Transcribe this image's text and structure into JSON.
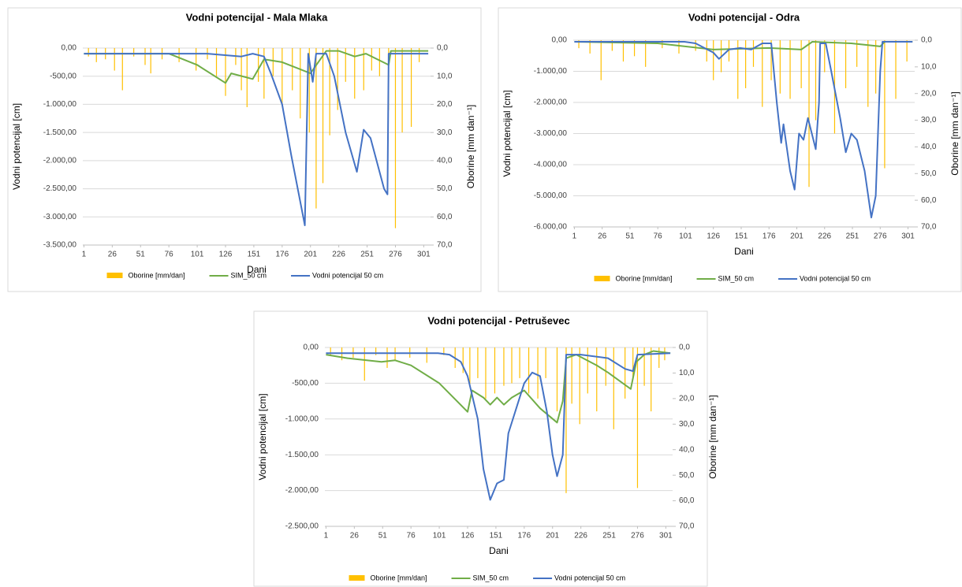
{
  "chart_data": [
    {
      "type": "bar-line",
      "title": "Vodni potencijal - Mala Mlaka",
      "x_label": "Dani",
      "y_label": "Vodni potencijal [cm]",
      "y2_label": "Oborine [mm dan⁻¹]",
      "xlim": [
        0,
        307
      ],
      "xticks": [
        1,
        26,
        51,
        76,
        101,
        126,
        151,
        176,
        201,
        226,
        251,
        276,
        301
      ],
      "ylim": [
        -3500,
        0
      ],
      "yticks": [
        {
          "value": 0,
          "label": "0,00"
        },
        {
          "value": -500,
          "label": "-500,00"
        },
        {
          "value": -1000,
          "label": "-1.000,00"
        },
        {
          "value": -1500,
          "label": "-1.500,00"
        },
        {
          "value": -2000,
          "label": "-2.000,00"
        },
        {
          "value": -2500,
          "label": "-2.500,00"
        },
        {
          "value": -3000,
          "label": "-3.000,00"
        },
        {
          "value": -3500,
          "label": "-3.500,00"
        }
      ],
      "y2lim": [
        0,
        70
      ],
      "y2_inverted": true,
      "y2ticks": [
        {
          "value": 0,
          "label": "0,0"
        },
        {
          "value": 10,
          "label": "10,0"
        },
        {
          "value": 20,
          "label": "20,0"
        },
        {
          "value": 30,
          "label": "30,0"
        },
        {
          "value": 40,
          "label": "40,0"
        },
        {
          "value": 50,
          "label": "50,0"
        },
        {
          "value": 60,
          "label": "60,0"
        },
        {
          "value": 70,
          "label": "70,0"
        }
      ],
      "grid": true,
      "legend": "bottom",
      "series": [
        {
          "name": "Oborine [mm/dan]",
          "type": "bar",
          "axis": "y2",
          "color": "#ffc000",
          "x": [
            5,
            12,
            20,
            28,
            35,
            45,
            55,
            60,
            70,
            85,
            100,
            110,
            118,
            126,
            135,
            140,
            145,
            155,
            160,
            168,
            176,
            185,
            192,
            200,
            206,
            212,
            218,
            225,
            232,
            240,
            248,
            255,
            262,
            270,
            276,
            282,
            290,
            297
          ],
          "values": [
            3,
            5,
            4,
            8,
            15,
            3,
            6,
            9,
            4,
            5,
            8,
            4,
            10,
            17,
            6,
            15,
            21,
            12,
            18,
            10,
            20,
            15,
            25,
            30,
            57,
            48,
            31,
            22,
            12,
            18,
            15,
            8,
            10,
            22,
            64,
            30,
            28,
            5
          ]
        },
        {
          "name": "SIM_50 cm",
          "type": "line",
          "color": "#70ad47",
          "x": [
            1,
            51,
            76,
            101,
            126,
            131,
            150,
            160,
            176,
            201,
            215,
            226,
            240,
            250,
            270,
            272,
            305
          ],
          "values": [
            -100,
            -100,
            -100,
            -300,
            -620,
            -450,
            -550,
            -200,
            -250,
            -450,
            -50,
            -50,
            -150,
            -100,
            -300,
            -50,
            -50
          ]
        },
        {
          "name": "Vodni potencijal 50 cm",
          "type": "line",
          "color": "#4472c4",
          "x": [
            1,
            60,
            110,
            140,
            150,
            160,
            166,
            176,
            184,
            196,
            199,
            203,
            206,
            215,
            222,
            232,
            242,
            248,
            254,
            266,
            269,
            270,
            305
          ],
          "values": [
            -100,
            -100,
            -100,
            -150,
            -100,
            -150,
            -450,
            -1000,
            -1900,
            -3150,
            -100,
            -600,
            -100,
            -100,
            -500,
            -1500,
            -2200,
            -1450,
            -1600,
            -2500,
            -2600,
            -100,
            -100
          ]
        }
      ]
    },
    {
      "type": "bar-line",
      "title": "Vodni potencijal - Odra",
      "x_label": "Dani",
      "y_label": "Vodni potencijal [cm]",
      "y2_label": "Oborine [mm dan⁻¹]",
      "xlim": [
        0,
        307
      ],
      "xticks": [
        1,
        26,
        51,
        76,
        101,
        126,
        151,
        176,
        201,
        226,
        251,
        276,
        301
      ],
      "ylim": [
        -6000,
        0
      ],
      "yticks": [
        {
          "value": 0,
          "label": "0,00"
        },
        {
          "value": -1000,
          "label": "-1.000,00"
        },
        {
          "value": -2000,
          "label": "-2.000,00"
        },
        {
          "value": -3000,
          "label": "-3.000,00"
        },
        {
          "value": -4000,
          "label": "-4.000,00"
        },
        {
          "value": -5000,
          "label": "-5.000,00"
        },
        {
          "value": -6000,
          "label": "-6.000,00"
        }
      ],
      "y2lim": [
        0,
        70
      ],
      "y2_inverted": true,
      "y2ticks": [
        {
          "value": 0,
          "label": "0,0"
        },
        {
          "value": 10,
          "label": "10,0"
        },
        {
          "value": 20,
          "label": "20,0"
        },
        {
          "value": 30,
          "label": "30,0"
        },
        {
          "value": 40,
          "label": "40,0"
        },
        {
          "value": 50,
          "label": "50,0"
        },
        {
          "value": 60,
          "label": "60,0"
        },
        {
          "value": 70,
          "label": "70,0"
        }
      ],
      "grid": true,
      "legend": "bottom",
      "series": [
        {
          "name": "Oborine [mm/dan]",
          "type": "bar",
          "axis": "y2",
          "color": "#ffc000",
          "x": [
            5,
            15,
            25,
            35,
            45,
            55,
            65,
            80,
            95,
            110,
            120,
            126,
            133,
            140,
            148,
            155,
            162,
            170,
            178,
            186,
            195,
            205,
            212,
            218,
            226,
            235,
            245,
            255,
            265,
            272,
            280,
            290,
            300
          ],
          "values": [
            3,
            5,
            15,
            4,
            8,
            6,
            10,
            3,
            5,
            4,
            8,
            15,
            12,
            8,
            22,
            18,
            10,
            25,
            15,
            20,
            22,
            18,
            55,
            30,
            12,
            35,
            18,
            10,
            25,
            20,
            48,
            22,
            8
          ]
        },
        {
          "name": "SIM_50 cm",
          "type": "line",
          "color": "#70ad47",
          "x": [
            1,
            76,
            126,
            176,
            205,
            215,
            250,
            276,
            280,
            305
          ],
          "values": [
            -50,
            -100,
            -300,
            -250,
            -300,
            -50,
            -100,
            -200,
            -50,
            -50
          ]
        },
        {
          "name": "Vodni potencijal 50 cm",
          "type": "line",
          "color": "#4472c4",
          "x": [
            1,
            100,
            110,
            126,
            131,
            140,
            150,
            160,
            170,
            178,
            183,
            187,
            189,
            195,
            199,
            203,
            207,
            211,
            218,
            221,
            222,
            227,
            232,
            240,
            245,
            250,
            255,
            262,
            268,
            272,
            276,
            278,
            305
          ],
          "values": [
            -50,
            -50,
            -100,
            -400,
            -600,
            -300,
            -250,
            -300,
            -100,
            -100,
            -2000,
            -3300,
            -2700,
            -4200,
            -4800,
            -3000,
            -3200,
            -2500,
            -3500,
            -2000,
            -100,
            -100,
            -1000,
            -2500,
            -3600,
            -3000,
            -3200,
            -4200,
            -5700,
            -5000,
            -1000,
            -50,
            -50
          ]
        }
      ]
    },
    {
      "type": "bar-line",
      "title": "Vodni potencijal - Petruševec",
      "x_label": "Dani",
      "y_label": "Vodni potencijal [cm]",
      "y2_label": "Oborine [mm dan⁻¹]",
      "xlim": [
        0,
        307
      ],
      "xticks": [
        1,
        26,
        51,
        76,
        101,
        126,
        151,
        176,
        201,
        226,
        251,
        276,
        301
      ],
      "ylim": [
        -2500,
        0
      ],
      "yticks": [
        {
          "value": 0,
          "label": "0,00"
        },
        {
          "value": -500,
          "label": "-500,00"
        },
        {
          "value": -1000,
          "label": "-1.000,00"
        },
        {
          "value": -1500,
          "label": "-1.500,00"
        },
        {
          "value": -2000,
          "label": "-2.000,00"
        },
        {
          "value": -2500,
          "label": "-2.500,00"
        }
      ],
      "y2lim": [
        0,
        70
      ],
      "y2_inverted": true,
      "y2ticks": [
        {
          "value": 0,
          "label": "0,0"
        },
        {
          "value": 10,
          "label": "10,0"
        },
        {
          "value": 20,
          "label": "20,0"
        },
        {
          "value": 30,
          "label": "30,0"
        },
        {
          "value": 40,
          "label": "40,0"
        },
        {
          "value": 50,
          "label": "50,0"
        },
        {
          "value": 60,
          "label": "60,0"
        },
        {
          "value": 70,
          "label": "70,0"
        }
      ],
      "grid": true,
      "legend": "bottom",
      "series": [
        {
          "name": "Oborine [mm/dan]",
          "type": "bar",
          "axis": "y2",
          "color": "#ffc000",
          "x": [
            5,
            15,
            25,
            35,
            45,
            55,
            62,
            75,
            90,
            105,
            115,
            122,
            128,
            135,
            142,
            150,
            158,
            165,
            172,
            180,
            188,
            195,
            205,
            213,
            218,
            225,
            232,
            240,
            248,
            255,
            265,
            272,
            276,
            282,
            288,
            295,
            300
          ],
          "values": [
            3,
            5,
            4,
            13,
            3,
            8,
            5,
            4,
            6,
            3,
            8,
            10,
            15,
            12,
            20,
            18,
            15,
            14,
            12,
            18,
            20,
            12,
            25,
            57,
            22,
            30,
            18,
            25,
            15,
            32,
            20,
            12,
            55,
            15,
            25,
            8,
            5
          ]
        },
        {
          "name": "SIM_50 cm",
          "type": "line",
          "color": "#70ad47",
          "x": [
            1,
            20,
            50,
            62,
            76,
            101,
            126,
            130,
            140,
            146,
            152,
            158,
            165,
            176,
            190,
            205,
            210,
            213,
            222,
            240,
            250,
            270,
            275,
            282,
            290,
            305
          ],
          "values": [
            -100,
            -150,
            -200,
            -180,
            -250,
            -500,
            -900,
            -600,
            -700,
            -800,
            -700,
            -800,
            -700,
            -600,
            -850,
            -1050,
            -750,
            -150,
            -100,
            -250,
            -350,
            -580,
            -200,
            -100,
            -50,
            -80
          ]
        },
        {
          "name": "Vodni potencijal 50 cm",
          "type": "line",
          "color": "#4472c4",
          "x": [
            1,
            100,
            110,
            120,
            126,
            135,
            140,
            146,
            152,
            158,
            162,
            170,
            176,
            183,
            190,
            196,
            201,
            205,
            210,
            213,
            226,
            250,
            265,
            272,
            276,
            305
          ],
          "values": [
            -80,
            -80,
            -100,
            -200,
            -400,
            -1000,
            -1700,
            -2130,
            -1900,
            -1850,
            -1200,
            -800,
            -500,
            -350,
            -400,
            -900,
            -1500,
            -1800,
            -1500,
            -100,
            -100,
            -150,
            -300,
            -330,
            -100,
            -80
          ]
        }
      ]
    }
  ]
}
